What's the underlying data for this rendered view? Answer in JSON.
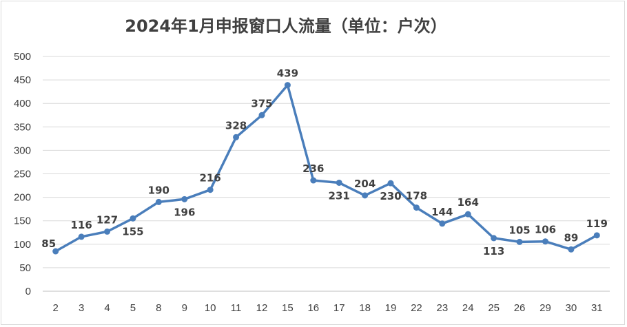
{
  "chart_data": {
    "type": "line",
    "title": "2024年1月申报窗口人流量（单位：户次）",
    "xlabel": "",
    "ylabel": "",
    "categories": [
      "2",
      "3",
      "4",
      "5",
      "8",
      "9",
      "10",
      "11",
      "12",
      "15",
      "16",
      "17",
      "18",
      "19",
      "22",
      "23",
      "24",
      "25",
      "26",
      "29",
      "30",
      "31"
    ],
    "series": [
      {
        "values": [
          85,
          116,
          127,
          155,
          190,
          196,
          216,
          328,
          375,
          439,
          236,
          231,
          204,
          230,
          178,
          144,
          164,
          113,
          105,
          106,
          89,
          119
        ]
      }
    ],
    "label_positions": [
      "left",
      "above",
      "above",
      "below",
      "above",
      "below",
      "above",
      "above",
      "above",
      "above",
      "above",
      "below",
      "above",
      "below",
      "above",
      "above",
      "above",
      "below",
      "above",
      "above",
      "above",
      "above"
    ],
    "ylim": [
      0,
      500
    ],
    "yticks": [
      0,
      50,
      100,
      150,
      200,
      250,
      300,
      350,
      400,
      450,
      500
    ],
    "grid": true,
    "legend": "none",
    "line_color": "#4a7ebb",
    "grid_color": "#d9d9d9"
  }
}
